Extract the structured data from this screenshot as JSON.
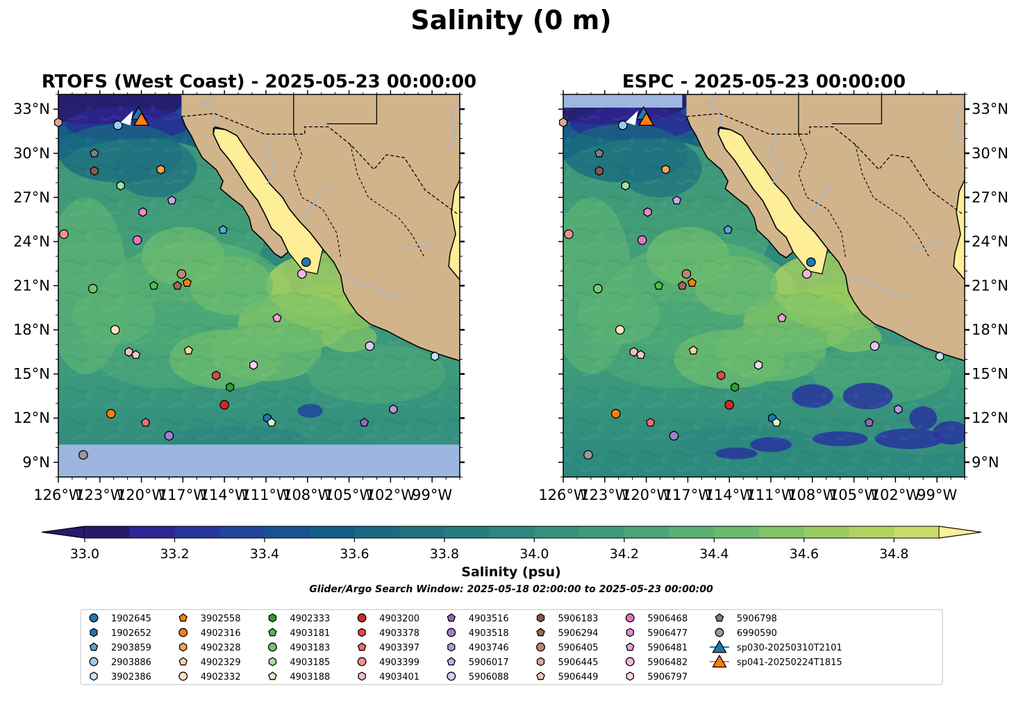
{
  "suptitle": "Salinity (0 m)",
  "panels": [
    {
      "title": "RTOFS (West Coast) - 2025-05-23 00:00:00",
      "missing_rows": "south"
    },
    {
      "title": "ESPC - 2025-05-23 00:00:00",
      "missing_rows": "north"
    }
  ],
  "colorbar": {
    "label": "Salinity (psu)",
    "range": [
      33.0,
      34.9
    ],
    "levels": [
      33.0,
      33.1,
      33.2,
      33.3,
      33.4,
      33.5,
      33.6,
      33.7,
      33.8,
      33.9,
      34.0,
      34.1,
      34.2,
      34.3,
      34.4,
      34.5,
      34.6,
      34.7,
      34.8,
      34.9
    ],
    "ticks": [
      "33.0",
      "33.2",
      "33.4",
      "33.6",
      "33.8",
      "34.0",
      "34.2",
      "34.4",
      "34.6",
      "34.8"
    ],
    "extend": "both"
  },
  "search_window": "Glider/Argo Search Window: 2025-05-18 02:00:00 to 2025-05-23 00:00:00",
  "colors": {
    "land": "#d2b48c",
    "no_data": "#9db6e0",
    "gulf_high_salinity": "#fdee97",
    "rivers": "#9fb7cf",
    "colormap": [
      "#28196a",
      "#2e2596",
      "#27359d",
      "#1f4599",
      "#165390",
      "#125e88",
      "#186982",
      "#1f737f",
      "#257d7e",
      "#2c877e",
      "#35917d",
      "#3e9b7b",
      "#4aa677",
      "#59b174",
      "#6bbb6f",
      "#80c466",
      "#98cc5f",
      "#b0d45f",
      "#cadb6c",
      "#fdee97"
    ]
  },
  "chart_data": {
    "type": "scatter",
    "map_extent": {
      "lon": [
        -126.0,
        -97.0
      ],
      "lat": [
        8.0,
        34.0
      ]
    },
    "x_ticks": [
      "126°W",
      "123°W",
      "120°W",
      "117°W",
      "114°W",
      "111°W",
      "108°W",
      "105°W",
      "102°W",
      "99°W"
    ],
    "x_tick_values": [
      -126,
      -123,
      -120,
      -117,
      -114,
      -111,
      -108,
      -105,
      -102,
      -99
    ],
    "y_ticks": [
      "9°N",
      "12°N",
      "15°N",
      "18°N",
      "21°N",
      "24°N",
      "27°N",
      "30°N",
      "33°N"
    ],
    "y_tick_values": [
      9,
      12,
      15,
      18,
      21,
      24,
      27,
      30,
      33
    ],
    "floats": [
      {
        "name": "1902645",
        "marker": "circle",
        "color": "#1f77b4",
        "lon": -108.1,
        "lat": 22.6
      },
      {
        "name": "1902652",
        "marker": "hexagon",
        "color": "#1f77b4",
        "lon": -110.9,
        "lat": 12.0
      },
      {
        "name": "2903859",
        "marker": "pentagon",
        "color": "#5ba3d6",
        "lon": -114.1,
        "lat": 24.8
      },
      {
        "name": "2903886",
        "marker": "circle",
        "color": "#9ecae9",
        "lon": -121.7,
        "lat": 31.9
      },
      {
        "name": "3902386",
        "marker": "hexagon",
        "color": "#c6e2f5",
        "lon": -98.8,
        "lat": 16.2
      },
      {
        "name": "3902558",
        "marker": "pentagon",
        "color": "#ff7f0e",
        "lon": -116.7,
        "lat": 21.2
      },
      {
        "name": "4902316",
        "marker": "circle",
        "color": "#ff7f0e",
        "lon": -122.2,
        "lat": 12.3
      },
      {
        "name": "4902328",
        "marker": "hexagon",
        "color": "#ffa34d",
        "lon": -118.6,
        "lat": 28.9
      },
      {
        "name": "4902329",
        "marker": "pentagon",
        "color": "#ffd3a1",
        "lon": -116.6,
        "lat": 16.6
      },
      {
        "name": "4902332",
        "marker": "circle",
        "color": "#ffe3c4",
        "lon": -121.9,
        "lat": 18.0
      },
      {
        "name": "4902333",
        "marker": "hexagon",
        "color": "#2ca02c",
        "lon": -113.6,
        "lat": 14.1
      },
      {
        "name": "4903181",
        "marker": "pentagon",
        "color": "#55bb4a",
        "lon": -119.1,
        "lat": 21.0
      },
      {
        "name": "4903183",
        "marker": "circle",
        "color": "#78c56d",
        "lon": -123.5,
        "lat": 20.8
      },
      {
        "name": "4903185",
        "marker": "hexagon",
        "color": "#a4e09c",
        "lon": -121.5,
        "lat": 27.8
      },
      {
        "name": "4903188",
        "marker": "pentagon",
        "color": "#d8f7cc",
        "lon": -110.6,
        "lat": 11.7
      },
      {
        "name": "4903200",
        "marker": "circle",
        "color": "#d62728",
        "lon": -114.0,
        "lat": 12.9
      },
      {
        "name": "4903378",
        "marker": "hexagon",
        "color": "#e04848",
        "lon": -114.6,
        "lat": 14.9
      },
      {
        "name": "4903397",
        "marker": "pentagon",
        "color": "#f26d6d",
        "lon": -119.7,
        "lat": 11.7
      },
      {
        "name": "4903399",
        "marker": "circle",
        "color": "#f4908c",
        "lon": -125.6,
        "lat": 24.5
      },
      {
        "name": "4903401",
        "marker": "hexagon",
        "color": "#f8bcbc",
        "lon": -120.9,
        "lat": 16.5
      },
      {
        "name": "4903516",
        "marker": "pentagon",
        "color": "#9467bd",
        "lon": -103.9,
        "lat": 11.7
      },
      {
        "name": "4903518",
        "marker": "circle",
        "color": "#a27fcb",
        "lon": -118.0,
        "lat": 10.8
      },
      {
        "name": "4903746",
        "marker": "hexagon",
        "color": "#b697dd",
        "lon": -101.8,
        "lat": 12.6
      },
      {
        "name": "5906017",
        "marker": "pentagon",
        "color": "#c9a7ef",
        "lon": -117.8,
        "lat": 26.8
      },
      {
        "name": "5906088",
        "marker": "circle",
        "color": "#dcc8f7",
        "lon": -103.5,
        "lat": 16.9
      },
      {
        "name": "5906183",
        "marker": "hexagon",
        "color": "#8c564b",
        "lon": -123.4,
        "lat": 28.8
      },
      {
        "name": "5906294",
        "marker": "pentagon",
        "color": "#a0675b",
        "lon": -117.4,
        "lat": 21.0
      },
      {
        "name": "5906405",
        "marker": "circle",
        "color": "#b98678",
        "lon": -117.1,
        "lat": 21.8
      },
      {
        "name": "5906445",
        "marker": "hexagon",
        "color": "#dba99b",
        "lon": -126.0,
        "lat": 32.1
      },
      {
        "name": "5906449",
        "marker": "pentagon",
        "color": "#f1c9bc",
        "lon": -120.4,
        "lat": 16.3
      },
      {
        "name": "5906468",
        "marker": "circle",
        "color": "#e377c2",
        "lon": -120.3,
        "lat": 24.1
      },
      {
        "name": "5906477",
        "marker": "hexagon",
        "color": "#e88bcd",
        "lon": -119.9,
        "lat": 26.0
      },
      {
        "name": "5906481",
        "marker": "pentagon",
        "color": "#f39edb",
        "lon": -110.2,
        "lat": 18.8
      },
      {
        "name": "5906482",
        "marker": "circle",
        "color": "#f7b6e2",
        "lon": -108.4,
        "lat": 21.8
      },
      {
        "name": "5906797",
        "marker": "hexagon",
        "color": "#fbd5ee",
        "lon": -111.9,
        "lat": 15.6
      },
      {
        "name": "5906798",
        "marker": "pentagon",
        "color": "#7f7f7f",
        "lon": -123.4,
        "lat": 30.0
      },
      {
        "name": "6990590",
        "marker": "circle",
        "color": "#999999",
        "lon": -124.2,
        "lat": 9.5
      }
    ],
    "gliders": [
      {
        "name": "sp030-20250310T2101",
        "marker": "triangle",
        "color": "#1f77b4",
        "lon": -120.2,
        "lat": 32.7
      },
      {
        "name": "sp041-20250224T1815",
        "marker": "triangle",
        "color": "#ff7f0e",
        "lon": -120.0,
        "lat": 32.3
      }
    ]
  }
}
